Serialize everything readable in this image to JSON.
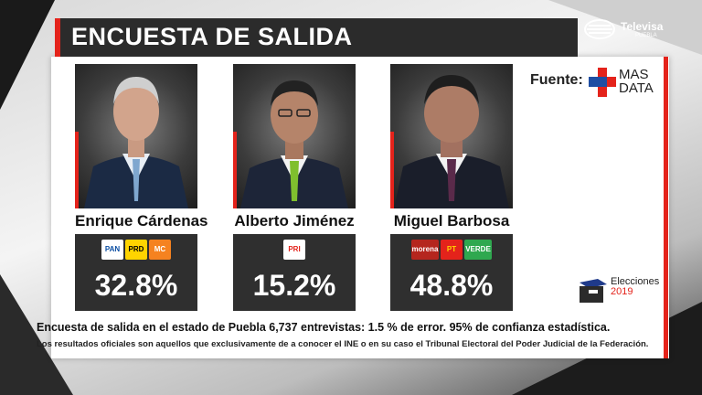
{
  "header": {
    "title": "ENCUESTA DE SALIDA"
  },
  "broadcaster": {
    "name": "Televisa",
    "region": "PUEBLA"
  },
  "source": {
    "label": "Fuente:",
    "brand_line1": "MAS",
    "brand_line2": "DATA"
  },
  "candidates": [
    {
      "name": "Enrique Cárdenas",
      "parties": [
        {
          "label": "PAN",
          "icon": "pan-logo-icon",
          "bg": "#ffffff",
          "fg": "#0a4da2"
        },
        {
          "label": "PRD",
          "icon": "prd-logo-icon",
          "bg": "#ffd400",
          "fg": "#000000"
        },
        {
          "label": "MC",
          "icon": "mc-logo-icon",
          "bg": "#f58220",
          "fg": "#ffffff"
        }
      ],
      "percentage": "32.8%",
      "tie_color": "#7fa7cf"
    },
    {
      "name": "Alberto Jiménez",
      "parties": [
        {
          "label": "PRI",
          "icon": "pri-logo-icon",
          "bg": "#ffffff",
          "fg": "#e4231b"
        }
      ],
      "percentage": "15.2%",
      "tie_color": "#7fbf2e"
    },
    {
      "name": "Miguel Barbosa",
      "parties": [
        {
          "label": "morena",
          "icon": "morena-logo-icon",
          "bg": "#b5261e",
          "fg": "#ffffff"
        },
        {
          "label": "PT",
          "icon": "pt-logo-icon",
          "bg": "#e4231b",
          "fg": "#ffd400"
        },
        {
          "label": "VERDE",
          "icon": "verde-logo-icon",
          "bg": "#2fa84f",
          "fg": "#ffffff"
        }
      ],
      "percentage": "48.8%",
      "tie_color": "#5a2a4a"
    }
  ],
  "elections": {
    "label": "Elecciones",
    "year": "2019"
  },
  "footer": {
    "line1": "Encuesta de salida en el estado de Puebla 6,737 entrevistas: 1.5 % de error.  95% de confianza estadística.",
    "line2": "Los resultados oficiales son aquellos que exclusivamente de a conocer el INE o en su caso el Tribunal Electoral del Poder Judicial de la Federación."
  },
  "colors": {
    "accent": "#e4231b",
    "title_bg": "#2b2b2b",
    "result_bg": "#2f2f2f"
  }
}
